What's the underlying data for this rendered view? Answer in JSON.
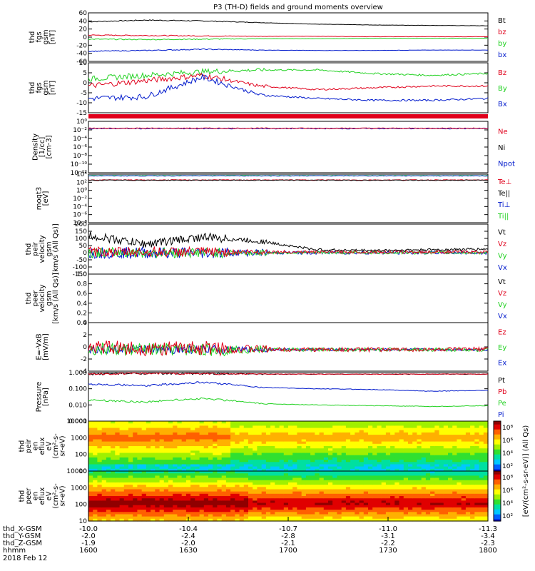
{
  "title": "P3 (TH-D) fields and ground moments overview",
  "colors": {
    "black": "#000000",
    "red": "#e0001b",
    "green": "#21d121",
    "blue": "#0019cc"
  },
  "panels": [
    {
      "key": "fgs_gsm",
      "ylabel": [
        "thd",
        "fgs",
        "gsm",
        "[nT]"
      ],
      "yticks": [
        "60",
        "40",
        "20",
        "0",
        "-20",
        "-40",
        "-60"
      ],
      "ylim": [
        -60,
        60
      ],
      "legend": [
        {
          "text": "Bt",
          "color": "black"
        },
        {
          "text": "bz",
          "color": "red"
        },
        {
          "text": "by",
          "color": "green"
        },
        {
          "text": "bx",
          "color": "blue"
        }
      ]
    },
    {
      "key": "fgs_dsl",
      "ylabel": [
        "thd",
        "fgs",
        "gsm",
        "[nT]"
      ],
      "yticks": [
        "10",
        "5",
        "0",
        "-5",
        "-10",
        "-15"
      ],
      "ylim": [
        -18,
        10
      ],
      "legend": [
        {
          "text": "Bz",
          "color": "red"
        },
        {
          "text": "By",
          "color": "green"
        },
        {
          "text": "Bx",
          "color": "blue"
        }
      ]
    },
    {
      "key": "density",
      "ylabel": [
        "Density",
        "[1/cc]",
        "[cm-3]"
      ],
      "yticks": [
        "10⁰",
        "10⁻²",
        "10⁻⁴",
        "10⁻⁶",
        "10⁻⁸",
        "10⁻¹⁰",
        "10⁻¹²"
      ],
      "legend": [
        {
          "text": "Ne",
          "color": "red"
        },
        {
          "text": "Ni",
          "color": "black"
        },
        {
          "text": "Npot",
          "color": "blue"
        }
      ]
    },
    {
      "key": "temperature",
      "ylabel": [
        "moqt3",
        "[eV]"
      ],
      "yticks": [
        "10⁴",
        "10²",
        "10⁰",
        "10⁻²",
        "10⁻⁴",
        "10⁻⁶",
        "10⁻⁸"
      ],
      "legend": [
        {
          "text": "Te⊥",
          "color": "red"
        },
        {
          "text": "Te||",
          "color": "black"
        },
        {
          "text": "Ti⊥",
          "color": "blue"
        },
        {
          "text": "Ti||",
          "color": "green"
        }
      ]
    },
    {
      "key": "peir_velocity",
      "ylabel": [
        "thd",
        "peir",
        "velocity",
        "gsm",
        "[km/s (All Qs)]"
      ],
      "yticks": [
        "200",
        "150",
        "100",
        "50",
        "0",
        "-50",
        "-100",
        "-150"
      ],
      "ylim": [
        -150,
        200
      ],
      "legend": [
        {
          "text": "Vt",
          "color": "black"
        },
        {
          "text": "Vz",
          "color": "red"
        },
        {
          "text": "Vy",
          "color": "green"
        },
        {
          "text": "Vx",
          "color": "blue"
        }
      ]
    },
    {
      "key": "peer_velocity",
      "ylabel": [
        "thd",
        "peer",
        "velocity",
        "gsm",
        "[km/s (All Qs)]"
      ],
      "yticks": [
        "1.0",
        "0.8",
        "0.6",
        "0.4",
        "0.2",
        "0.0"
      ],
      "ylim": [
        0,
        1
      ],
      "legend": [
        {
          "text": "Vt",
          "color": "black"
        },
        {
          "text": "Vz",
          "color": "red"
        },
        {
          "text": "Vy",
          "color": "green"
        },
        {
          "text": "Vx",
          "color": "blue"
        }
      ]
    },
    {
      "key": "efield",
      "ylabel": [
        "E=-VxB",
        "[mV/m]"
      ],
      "yticks": [
        "4",
        "2",
        "0",
        "-2",
        "-4"
      ],
      "ylim": [
        -4,
        5
      ],
      "legend": [
        {
          "text": "Ez",
          "color": "red"
        },
        {
          "text": "Ey",
          "color": "green"
        },
        {
          "text": "Ex",
          "color": "blue"
        }
      ]
    },
    {
      "key": "pressure",
      "ylabel": [
        "Pressure",
        "[nPa]"
      ],
      "yticks": [
        "1.000",
        "0.100",
        "0.010",
        "0.001"
      ],
      "legend": [
        {
          "text": "Pt",
          "color": "black"
        },
        {
          "text": "Pb",
          "color": "red"
        },
        {
          "text": "Pe",
          "color": "green"
        },
        {
          "text": "Pi",
          "color": "blue"
        }
      ]
    },
    {
      "key": "peir_spec",
      "ylabel": [
        "thd",
        "peir",
        "en",
        "eflux",
        "eV",
        "(cm²-s-",
        "sr-eV)"
      ],
      "yticks": [
        "10000",
        "1000",
        "100",
        "10"
      ],
      "colorbar": [
        "10⁸",
        "10⁶",
        "10⁴",
        "10²"
      ]
    },
    {
      "key": "peer_spec",
      "ylabel": [
        "thd",
        "peer",
        "en",
        "eflux",
        "eV",
        "(cm²-s-",
        "sr-eV)"
      ],
      "yticks": [
        "10000",
        "1000",
        "100",
        "10"
      ],
      "colorbar": [
        "10⁸",
        "10⁶",
        "10⁴",
        "10²"
      ]
    }
  ],
  "colorbar_label": "[eV/(cm²-s-sr-eV)] (All Qs)",
  "xaxis": {
    "rows": [
      {
        "label": "thd_X-GSM",
        "values": [
          "-10.0",
          "-10.4",
          "-10.7",
          "-11.0",
          "-11.3"
        ]
      },
      {
        "label": "thd_Y-GSM",
        "values": [
          "-2.0",
          "-2.4",
          "-2.8",
          "-3.1",
          "-3.4"
        ]
      },
      {
        "label": "thd_Z-GSM",
        "values": [
          "-1.9",
          "-2.0",
          "-2.1",
          "-2.2",
          "-2.3"
        ]
      },
      {
        "label": "hhmm",
        "values": [
          "1600",
          "1630",
          "1700",
          "1730",
          "1800"
        ]
      }
    ],
    "date": "2018 Feb 12"
  },
  "chart_data": {
    "type": "line",
    "title": "P3 (TH-D) fields and ground moments overview",
    "x_ticks_hhmm": [
      "1600",
      "1630",
      "1700",
      "1730",
      "1800"
    ],
    "series": [
      {
        "panel": "fgs_gsm",
        "name": "Bt",
        "values": [
          38,
          42,
          40,
          36,
          32,
          30,
          29,
          28
        ]
      },
      {
        "panel": "fgs_gsm",
        "name": "bz",
        "values": [
          5,
          4,
          3,
          2,
          2,
          1,
          1,
          1
        ]
      },
      {
        "panel": "fgs_gsm",
        "name": "by",
        "values": [
          -5,
          -6,
          -5,
          -4,
          -4,
          -3,
          -3,
          -3
        ]
      },
      {
        "panel": "fgs_gsm",
        "name": "bx",
        "values": [
          -35,
          -33,
          -30,
          -32,
          -33,
          -33,
          -32,
          -32
        ]
      },
      {
        "panel": "fgs_dsl",
        "name": "Bz",
        "values": [
          -3,
          0,
          3,
          -3,
          -5,
          -4,
          -3,
          -3
        ]
      },
      {
        "panel": "fgs_dsl",
        "name": "By",
        "values": [
          1,
          3,
          5,
          6,
          6,
          4,
          3,
          4
        ]
      },
      {
        "panel": "fgs_dsl",
        "name": "Bx",
        "values": [
          -10,
          -9,
          2,
          -8,
          -10,
          -11,
          -11,
          -10
        ]
      },
      {
        "panel": "peir_velocity",
        "name": "Vt",
        "values": [
          120,
          60,
          110,
          80,
          20,
          15,
          20,
          25
        ]
      },
      {
        "panel": "efield",
        "name": "Ez",
        "values": [
          2,
          0.5,
          1,
          0.2,
          0,
          0,
          0,
          0.3
        ]
      },
      {
        "panel": "pressure",
        "name": "Pt",
        "values": [
          0.8,
          0.9,
          0.85,
          0.8,
          0.8,
          0.8,
          0.8,
          0.8
        ]
      },
      {
        "panel": "pressure",
        "name": "Pi",
        "values": [
          0.2,
          0.15,
          0.25,
          0.12,
          0.1,
          0.09,
          0.07,
          0.08
        ]
      },
      {
        "panel": "pressure",
        "name": "Pe",
        "values": [
          0.02,
          0.015,
          0.025,
          0.012,
          0.01,
          0.009,
          0.008,
          0.009
        ]
      }
    ]
  }
}
